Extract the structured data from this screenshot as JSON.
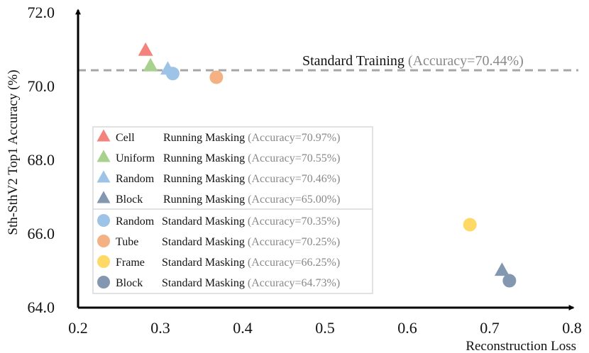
{
  "chart_data": {
    "type": "scatter",
    "title": "",
    "xlabel": "Reconstruction Loss",
    "ylabel": "Sth-SthV2 Top1 Accuracy (%)",
    "xlim": [
      0.2,
      0.8
    ],
    "ylim": [
      64.0,
      72.0
    ],
    "xticks": [
      "0.2",
      "0.3",
      "0.4",
      "0.5",
      "0.6",
      "0.7",
      "0.8"
    ],
    "yticks": [
      "64.0",
      "66.0",
      "68.0",
      "70.0",
      "72.0"
    ],
    "reference_line": {
      "label": "Standard Training",
      "accuracy_text": "(Accuracy=70.44%)",
      "value": 70.44,
      "color": "#a6a6a6"
    },
    "series": [
      {
        "name": "Cell",
        "kind": "Running Masking",
        "accuracy_text": "(Accuracy=70.97%)",
        "marker": "triangle",
        "color": "#f4837d",
        "x": 0.282,
        "y": 70.97
      },
      {
        "name": "Uniform",
        "kind": "Running Masking",
        "accuracy_text": "(Accuracy=70.55%)",
        "marker": "triangle",
        "color": "#a9d18e",
        "x": 0.288,
        "y": 70.55
      },
      {
        "name": "Random",
        "kind": "Running Masking",
        "accuracy_text": "(Accuracy=70.46%)",
        "marker": "triangle",
        "color": "#9dc3e6",
        "x": 0.309,
        "y": 70.46
      },
      {
        "name": "Block",
        "kind": "Running Masking",
        "accuracy_text": "(Accuracy=65.00%)",
        "marker": "triangle",
        "color": "#8497b0",
        "x": 0.715,
        "y": 65.0
      },
      {
        "name": "Random",
        "kind": "Standard Masking",
        "accuracy_text": "(Accuracy=70.35%)",
        "marker": "circle",
        "color": "#9dc3e6",
        "x": 0.315,
        "y": 70.35
      },
      {
        "name": "Tube",
        "kind": "Standard Masking",
        "accuracy_text": "(Accuracy=70.25%)",
        "marker": "circle",
        "color": "#f4b183",
        "x": 0.368,
        "y": 70.25
      },
      {
        "name": "Frame",
        "kind": "Standard Masking",
        "accuracy_text": "(Accuracy=66.25%)",
        "marker": "circle",
        "color": "#ffd966",
        "x": 0.676,
        "y": 66.25
      },
      {
        "name": "Block",
        "kind": "Standard Masking",
        "accuracy_text": "(Accuracy=64.73%)",
        "marker": "circle",
        "color": "#8497b0",
        "x": 0.724,
        "y": 64.73
      }
    ],
    "legend": "lower-left"
  }
}
